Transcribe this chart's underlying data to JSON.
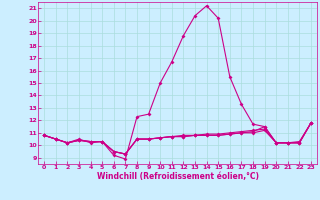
{
  "title": "",
  "xlabel": "Windchill (Refroidissement éolien,°C)",
  "ylabel": "",
  "background_color": "#cceeff",
  "grid_color": "#aadddd",
  "line_color": "#cc0088",
  "xlim": [
    -0.5,
    23.5
  ],
  "ylim": [
    8.5,
    21.5
  ],
  "yticks": [
    9,
    10,
    11,
    12,
    13,
    14,
    15,
    16,
    17,
    18,
    19,
    20,
    21
  ],
  "xticks": [
    0,
    1,
    2,
    3,
    4,
    5,
    6,
    7,
    8,
    9,
    10,
    11,
    12,
    13,
    14,
    15,
    16,
    17,
    18,
    19,
    20,
    21,
    22,
    23
  ],
  "curve1_x": [
    0,
    1,
    2,
    3,
    4,
    5,
    6,
    7,
    8,
    9,
    10,
    11,
    12,
    13,
    14,
    15,
    16,
    17,
    18,
    19,
    20,
    21,
    22,
    23
  ],
  "curve1_y": [
    10.8,
    10.5,
    10.2,
    10.5,
    10.2,
    10.3,
    9.2,
    8.9,
    12.3,
    12.5,
    15.0,
    16.7,
    18.8,
    20.4,
    21.2,
    20.2,
    15.5,
    13.3,
    11.7,
    11.5,
    10.2,
    10.2,
    10.2,
    11.8
  ],
  "curve2_x": [
    0,
    1,
    2,
    3,
    4,
    5,
    6,
    7,
    8,
    9,
    10,
    11,
    12,
    13,
    14,
    15,
    16,
    17,
    18,
    19,
    20,
    21,
    22,
    23
  ],
  "curve2_y": [
    10.8,
    10.5,
    10.2,
    10.4,
    10.3,
    10.3,
    9.5,
    9.3,
    10.5,
    10.5,
    10.6,
    10.7,
    10.7,
    10.8,
    10.8,
    10.8,
    10.9,
    11.0,
    11.0,
    11.2,
    10.2,
    10.2,
    10.2,
    11.8
  ],
  "curve3_x": [
    0,
    1,
    2,
    3,
    4,
    5,
    6,
    7,
    8,
    9,
    10,
    11,
    12,
    13,
    14,
    15,
    16,
    17,
    18,
    19,
    20,
    21,
    22,
    23
  ],
  "curve3_y": [
    10.8,
    10.5,
    10.2,
    10.4,
    10.3,
    10.3,
    9.5,
    9.3,
    10.5,
    10.5,
    10.6,
    10.7,
    10.8,
    10.8,
    10.9,
    10.9,
    11.0,
    11.1,
    11.2,
    11.3,
    10.2,
    10.2,
    10.2,
    11.8
  ],
  "curve4_x": [
    0,
    1,
    2,
    3,
    4,
    5,
    6,
    7,
    8,
    9,
    10,
    11,
    12,
    13,
    14,
    15,
    16,
    17,
    18,
    19,
    20,
    21,
    22,
    23
  ],
  "curve4_y": [
    10.8,
    10.5,
    10.2,
    10.4,
    10.3,
    10.3,
    9.5,
    9.3,
    10.5,
    10.5,
    10.6,
    10.7,
    10.7,
    10.8,
    10.8,
    10.8,
    10.9,
    11.0,
    11.1,
    11.5,
    10.2,
    10.2,
    10.3,
    11.8
  ],
  "marker_size": 2.0,
  "line_width": 0.8,
  "tick_fontsize": 4.5,
  "xlabel_fontsize": 5.5
}
